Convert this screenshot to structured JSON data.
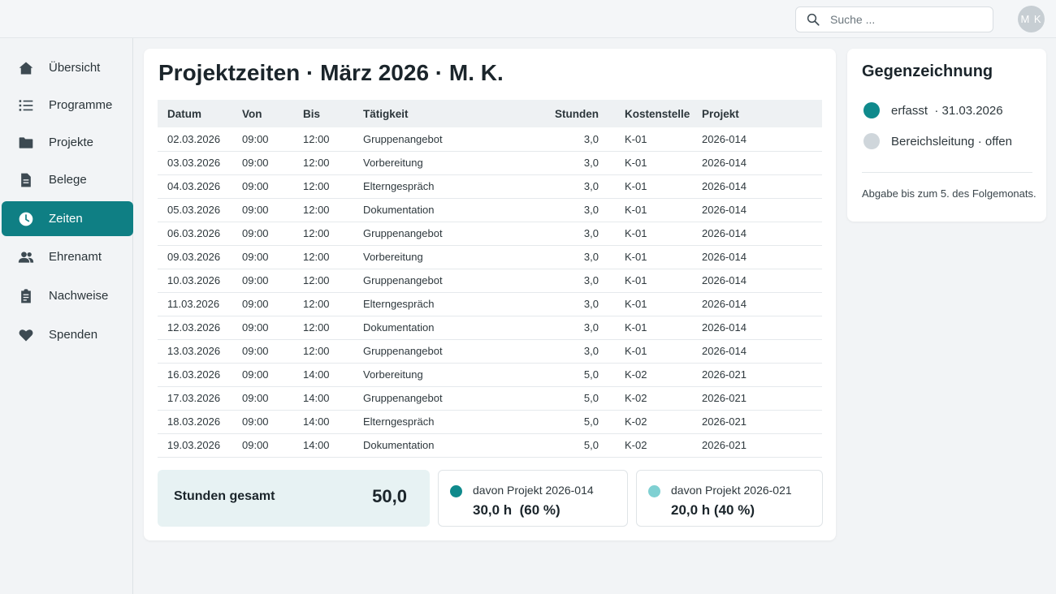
{
  "search": {
    "placeholder": "Suche ..."
  },
  "user": {
    "initials": "M K"
  },
  "sidebar": {
    "items": [
      {
        "label": "Übersicht",
        "icon": "home-icon",
        "active": false
      },
      {
        "label": "Programme",
        "icon": "list-icon",
        "active": false
      },
      {
        "label": "Projekte",
        "icon": "folder-icon",
        "active": false
      },
      {
        "label": "Belege",
        "icon": "document-icon",
        "active": false
      },
      {
        "label": "Zeiten",
        "icon": "clock-icon",
        "active": true
      },
      {
        "label": "Ehrenamt",
        "icon": "people-icon",
        "active": false
      },
      {
        "label": "Nachweise",
        "icon": "clipboard-icon",
        "active": false
      },
      {
        "label": "Spenden",
        "icon": "heart-icon",
        "active": false
      }
    ]
  },
  "main": {
    "title": "Projektzeiten · März 2026 · M. K.",
    "columns": [
      "Datum",
      "Von",
      "Bis",
      "Tätigkeit",
      "Stunden",
      "Kostenstelle",
      "Projekt"
    ],
    "rows": [
      [
        "02.03.2026",
        "09:00",
        "12:00",
        "Gruppenangebot",
        "3,0",
        "K-01",
        "2026-014"
      ],
      [
        "03.03.2026",
        "09:00",
        "12:00",
        "Vorbereitung",
        "3,0",
        "K-01",
        "2026-014"
      ],
      [
        "04.03.2026",
        "09:00",
        "12:00",
        "Elterngespräch",
        "3,0",
        "K-01",
        "2026-014"
      ],
      [
        "05.03.2026",
        "09:00",
        "12:00",
        "Dokumentation",
        "3,0",
        "K-01",
        "2026-014"
      ],
      [
        "06.03.2026",
        "09:00",
        "12:00",
        "Gruppenangebot",
        "3,0",
        "K-01",
        "2026-014"
      ],
      [
        "09.03.2026",
        "09:00",
        "12:00",
        "Vorbereitung",
        "3,0",
        "K-01",
        "2026-014"
      ],
      [
        "10.03.2026",
        "09:00",
        "12:00",
        "Gruppenangebot",
        "3,0",
        "K-01",
        "2026-014"
      ],
      [
        "11.03.2026",
        "09:00",
        "12:00",
        "Elterngespräch",
        "3,0",
        "K-01",
        "2026-014"
      ],
      [
        "12.03.2026",
        "09:00",
        "12:00",
        "Dokumentation",
        "3,0",
        "K-01",
        "2026-014"
      ],
      [
        "13.03.2026",
        "09:00",
        "12:00",
        "Gruppenangebot",
        "3,0",
        "K-01",
        "2026-014"
      ],
      [
        "16.03.2026",
        "09:00",
        "14:00",
        "Vorbereitung",
        "5,0",
        "K-02",
        "2026-021"
      ],
      [
        "17.03.2026",
        "09:00",
        "14:00",
        "Gruppenangebot",
        "5,0",
        "K-02",
        "2026-021"
      ],
      [
        "18.03.2026",
        "09:00",
        "14:00",
        "Elterngespräch",
        "5,0",
        "K-02",
        "2026-021"
      ],
      [
        "19.03.2026",
        "09:00",
        "14:00",
        "Dokumentation",
        "5,0",
        "K-02",
        "2026-021"
      ]
    ],
    "total": {
      "label": "Stunden gesamt",
      "value": "50,0"
    },
    "shares": [
      {
        "label": "davon Projekt 2026-014",
        "value": "30,0 h  (60 %)",
        "color": "#0f8a8c"
      },
      {
        "label": "davon Projekt 2026-021",
        "value": "20,0 h (40 %)",
        "color": "#7fd0d2"
      }
    ]
  },
  "approval": {
    "title": "Gegenzeichnung",
    "steps": [
      {
        "label": "erfasst  · 31.03.2026",
        "color": "#0f8a8c"
      },
      {
        "label": "Bereichsleitung · offen",
        "color": "#cfd6db"
      }
    ],
    "note": "Abgabe bis zum 5. des Folgemonats."
  }
}
